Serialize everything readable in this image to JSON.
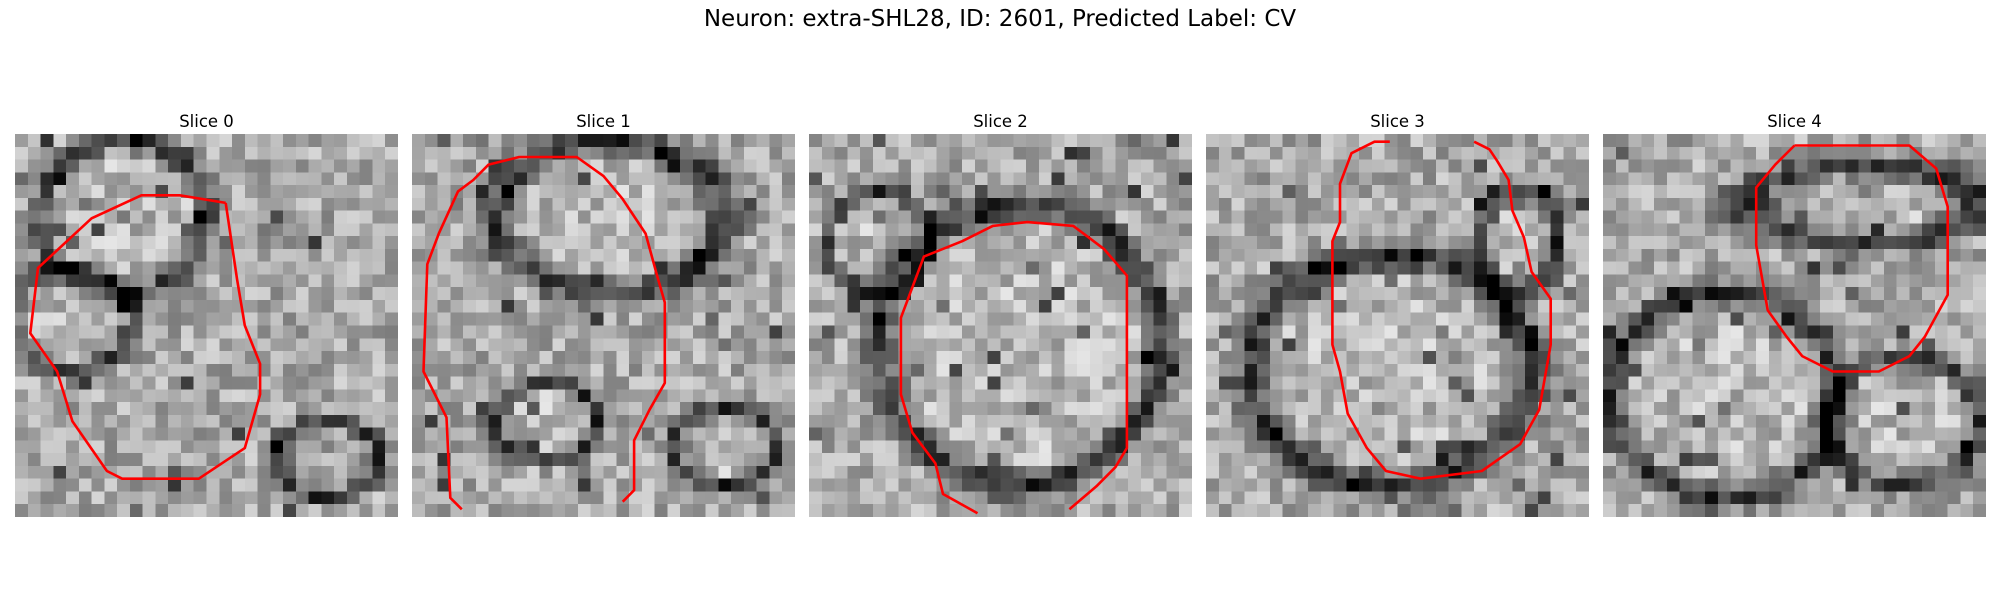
{
  "figure": {
    "title": "Neuron: extra-SHL28, ID: 2601, Predicted Label: CV"
  },
  "colors": {
    "contour": "#ff0000",
    "background": "#ffffff"
  },
  "panels": [
    {
      "title": "Slice 0",
      "contour": [
        [
          0.55,
          0.18
        ],
        [
          0.43,
          0.16
        ],
        [
          0.33,
          0.16
        ],
        [
          0.2,
          0.22
        ],
        [
          0.06,
          0.35
        ],
        [
          0.04,
          0.52
        ],
        [
          0.11,
          0.62
        ],
        [
          0.15,
          0.75
        ],
        [
          0.24,
          0.88
        ],
        [
          0.28,
          0.9
        ],
        [
          0.48,
          0.9
        ],
        [
          0.6,
          0.82
        ],
        [
          0.64,
          0.68
        ],
        [
          0.64,
          0.6
        ],
        [
          0.6,
          0.5
        ],
        [
          0.58,
          0.38
        ],
        [
          0.55,
          0.18
        ]
      ]
    },
    {
      "title": "Slice 1",
      "contour": [
        [
          0.13,
          0.98
        ],
        [
          0.1,
          0.95
        ],
        [
          0.09,
          0.74
        ],
        [
          0.03,
          0.62
        ],
        [
          0.04,
          0.34
        ],
        [
          0.07,
          0.26
        ],
        [
          0.12,
          0.15
        ],
        [
          0.16,
          0.12
        ],
        [
          0.2,
          0.08
        ],
        [
          0.28,
          0.06
        ],
        [
          0.43,
          0.06
        ],
        [
          0.5,
          0.11
        ],
        [
          0.55,
          0.17
        ],
        [
          0.61,
          0.26
        ],
        [
          0.64,
          0.37
        ],
        [
          0.66,
          0.44
        ],
        [
          0.66,
          0.65
        ],
        [
          0.62,
          0.72
        ],
        [
          0.58,
          0.8
        ],
        [
          0.58,
          0.93
        ],
        [
          0.55,
          0.96
        ]
      ]
    },
    {
      "title": "Slice 2",
      "contour": [
        [
          0.44,
          0.99
        ],
        [
          0.35,
          0.94
        ],
        [
          0.33,
          0.86
        ],
        [
          0.27,
          0.78
        ],
        [
          0.24,
          0.68
        ],
        [
          0.24,
          0.48
        ],
        [
          0.3,
          0.32
        ],
        [
          0.4,
          0.28
        ],
        [
          0.48,
          0.24
        ],
        [
          0.57,
          0.23
        ],
        [
          0.69,
          0.24
        ],
        [
          0.77,
          0.3
        ],
        [
          0.83,
          0.37
        ],
        [
          0.83,
          0.82
        ],
        [
          0.8,
          0.87
        ],
        [
          0.75,
          0.92
        ],
        [
          0.68,
          0.98
        ]
      ]
    },
    {
      "title": "Slice 3",
      "contour": [
        [
          0.48,
          0.02
        ],
        [
          0.44,
          0.02
        ],
        [
          0.38,
          0.05
        ],
        [
          0.35,
          0.13
        ],
        [
          0.35,
          0.23
        ],
        [
          0.33,
          0.28
        ],
        [
          0.33,
          0.55
        ],
        [
          0.35,
          0.62
        ],
        [
          0.37,
          0.73
        ],
        [
          0.42,
          0.82
        ],
        [
          0.47,
          0.88
        ],
        [
          0.56,
          0.9
        ],
        [
          0.72,
          0.88
        ],
        [
          0.82,
          0.81
        ],
        [
          0.87,
          0.72
        ],
        [
          0.9,
          0.55
        ],
        [
          0.9,
          0.43
        ],
        [
          0.85,
          0.36
        ],
        [
          0.83,
          0.27
        ],
        [
          0.8,
          0.2
        ],
        [
          0.79,
          0.12
        ],
        [
          0.76,
          0.07
        ],
        [
          0.74,
          0.04
        ],
        [
          0.7,
          0.02
        ]
      ]
    },
    {
      "title": "Slice 4",
      "contour": [
        [
          0.5,
          0.03
        ],
        [
          0.8,
          0.03
        ],
        [
          0.87,
          0.09
        ],
        [
          0.9,
          0.19
        ],
        [
          0.9,
          0.42
        ],
        [
          0.84,
          0.53
        ],
        [
          0.8,
          0.58
        ],
        [
          0.72,
          0.62
        ],
        [
          0.6,
          0.62
        ],
        [
          0.52,
          0.58
        ],
        [
          0.48,
          0.53
        ],
        [
          0.43,
          0.46
        ],
        [
          0.4,
          0.29
        ],
        [
          0.4,
          0.14
        ],
        [
          0.45,
          0.08
        ],
        [
          0.5,
          0.03
        ]
      ]
    }
  ]
}
